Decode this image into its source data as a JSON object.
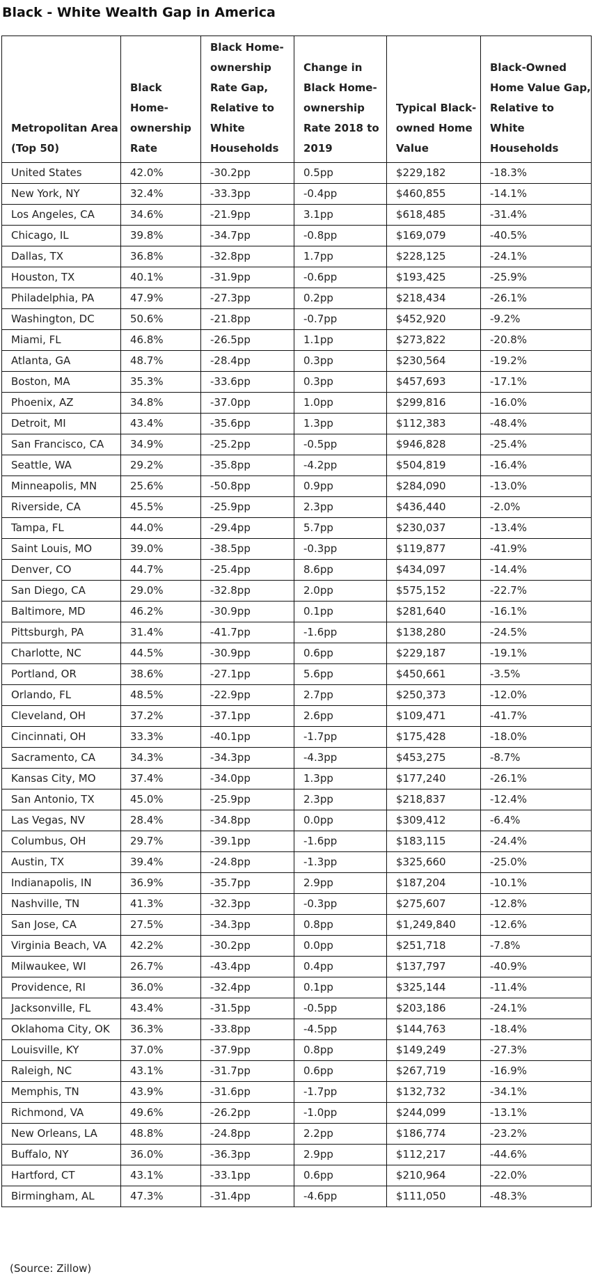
{
  "title": "Black - White Wealth Gap in America",
  "table": {
    "headers": [
      "Metropolitan Area (Top 50)",
      "Black Home-ownership Rate",
      "Black Home-ownership Rate Gap, Relative to White Households",
      "Change in Black Home-ownership Rate 2018 to 2019",
      "Typical Black-owned Home Value",
      "Black-Owned Home Value Gap, Relative to White Households"
    ],
    "rows": [
      [
        "United States",
        "42.0%",
        "-30.2pp",
        "0.5pp",
        "$229,182",
        "-18.3%"
      ],
      [
        "New York, NY",
        "32.4%",
        "-33.3pp",
        "-0.4pp",
        "$460,855",
        "-14.1%"
      ],
      [
        "Los Angeles, CA",
        "34.6%",
        "-21.9pp",
        "3.1pp",
        "$618,485",
        "-31.4%"
      ],
      [
        "Chicago, IL",
        "39.8%",
        "-34.7pp",
        "-0.8pp",
        "$169,079",
        "-40.5%"
      ],
      [
        "Dallas, TX",
        "36.8%",
        "-32.8pp",
        "1.7pp",
        "$228,125",
        "-24.1%"
      ],
      [
        "Houston, TX",
        "40.1%",
        "-31.9pp",
        "-0.6pp",
        "$193,425",
        "-25.9%"
      ],
      [
        "Philadelphia, PA",
        "47.9%",
        "-27.3pp",
        "0.2pp",
        "$218,434",
        "-26.1%"
      ],
      [
        "Washington, DC",
        "50.6%",
        "-21.8pp",
        "-0.7pp",
        "$452,920",
        "-9.2%"
      ],
      [
        "Miami, FL",
        "46.8%",
        "-26.5pp",
        "1.1pp",
        "$273,822",
        "-20.8%"
      ],
      [
        "Atlanta, GA",
        "48.7%",
        "-28.4pp",
        "0.3pp",
        "$230,564",
        "-19.2%"
      ],
      [
        "Boston, MA",
        "35.3%",
        "-33.6pp",
        "0.3pp",
        "$457,693",
        "-17.1%"
      ],
      [
        "Phoenix, AZ",
        "34.8%",
        "-37.0pp",
        "1.0pp",
        "$299,816",
        "-16.0%"
      ],
      [
        "Detroit, MI",
        "43.4%",
        "-35.6pp",
        "1.3pp",
        "$112,383",
        "-48.4%"
      ],
      [
        "San Francisco, CA",
        "34.9%",
        "-25.2pp",
        "-0.5pp",
        "$946,828",
        "-25.4%"
      ],
      [
        "Seattle, WA",
        "29.2%",
        "-35.8pp",
        "-4.2pp",
        "$504,819",
        "-16.4%"
      ],
      [
        "Minneapolis, MN",
        "25.6%",
        "-50.8pp",
        "0.9pp",
        "$284,090",
        "-13.0%"
      ],
      [
        "Riverside, CA",
        "45.5%",
        "-25.9pp",
        "2.3pp",
        "$436,440",
        "-2.0%"
      ],
      [
        "Tampa, FL",
        "44.0%",
        "-29.4pp",
        "5.7pp",
        "$230,037",
        "-13.4%"
      ],
      [
        "Saint Louis, MO",
        "39.0%",
        "-38.5pp",
        "-0.3pp",
        "$119,877",
        "-41.9%"
      ],
      [
        "Denver, CO",
        "44.7%",
        "-25.4pp",
        "8.6pp",
        "$434,097",
        "-14.4%"
      ],
      [
        "San Diego, CA",
        "29.0%",
        "-32.8pp",
        "2.0pp",
        "$575,152",
        "-22.7%"
      ],
      [
        "Baltimore, MD",
        "46.2%",
        "-30.9pp",
        "0.1pp",
        "$281,640",
        "-16.1%"
      ],
      [
        "Pittsburgh, PA",
        "31.4%",
        "-41.7pp",
        "-1.6pp",
        "$138,280",
        "-24.5%"
      ],
      [
        "Charlotte, NC",
        "44.5%",
        "-30.9pp",
        "0.6pp",
        "$229,187",
        "-19.1%"
      ],
      [
        "Portland, OR",
        "38.6%",
        "-27.1pp",
        "5.6pp",
        "$450,661",
        "-3.5%"
      ],
      [
        "Orlando, FL",
        "48.5%",
        "-22.9pp",
        "2.7pp",
        "$250,373",
        "-12.0%"
      ],
      [
        "Cleveland, OH",
        "37.2%",
        "-37.1pp",
        "2.6pp",
        "$109,471",
        "-41.7%"
      ],
      [
        "Cincinnati, OH",
        "33.3%",
        "-40.1pp",
        "-1.7pp",
        "$175,428",
        "-18.0%"
      ],
      [
        "Sacramento, CA",
        "34.3%",
        "-34.3pp",
        "-4.3pp",
        "$453,275",
        "-8.7%"
      ],
      [
        "Kansas City, MO",
        "37.4%",
        "-34.0pp",
        "1.3pp",
        "$177,240",
        "-26.1%"
      ],
      [
        "San Antonio, TX",
        "45.0%",
        "-25.9pp",
        "2.3pp",
        "$218,837",
        "-12.4%"
      ],
      [
        "Las Vegas, NV",
        "28.4%",
        "-34.8pp",
        "0.0pp",
        "$309,412",
        "-6.4%"
      ],
      [
        "Columbus, OH",
        "29.7%",
        "-39.1pp",
        "-1.6pp",
        "$183,115",
        "-24.4%"
      ],
      [
        "Austin, TX",
        "39.4%",
        "-24.8pp",
        "-1.3pp",
        "$325,660",
        "-25.0%"
      ],
      [
        "Indianapolis, IN",
        "36.9%",
        "-35.7pp",
        "2.9pp",
        "$187,204",
        "-10.1%"
      ],
      [
        "Nashville, TN",
        "41.3%",
        "-32.3pp",
        "-0.3pp",
        "$275,607",
        "-12.8%"
      ],
      [
        "San Jose, CA",
        "27.5%",
        "-34.3pp",
        "0.8pp",
        "$1,249,840",
        "-12.6%"
      ],
      [
        "Virginia Beach, VA",
        "42.2%",
        "-30.2pp",
        "0.0pp",
        "$251,718",
        "-7.8%"
      ],
      [
        "Milwaukee, WI",
        "26.7%",
        "-43.4pp",
        "0.4pp",
        "$137,797",
        "-40.9%"
      ],
      [
        "Providence, RI",
        "36.0%",
        "-32.4pp",
        "0.1pp",
        "$325,144",
        "-11.4%"
      ],
      [
        "Jacksonville, FL",
        "43.4%",
        "-31.5pp",
        "-0.5pp",
        "$203,186",
        "-24.1%"
      ],
      [
        "Oklahoma City, OK",
        "36.3%",
        "-33.8pp",
        "-4.5pp",
        "$144,763",
        "-18.4%"
      ],
      [
        "Louisville, KY",
        "37.0%",
        "-37.9pp",
        "0.8pp",
        "$149,249",
        "-27.3%"
      ],
      [
        "Raleigh, NC",
        "43.1%",
        "-31.7pp",
        "0.6pp",
        "$267,719",
        "-16.9%"
      ],
      [
        "Memphis, TN",
        "43.9%",
        "-31.6pp",
        "-1.7pp",
        "$132,732",
        "-34.1%"
      ],
      [
        "Richmond, VA",
        "49.6%",
        "-26.2pp",
        "-1.0pp",
        "$244,099",
        "-13.1%"
      ],
      [
        "New Orleans, LA",
        "48.8%",
        "-24.8pp",
        "2.2pp",
        "$186,774",
        "-23.2%"
      ],
      [
        "Buffalo, NY",
        "36.0%",
        "-36.3pp",
        "2.9pp",
        "$112,217",
        "-44.6%"
      ],
      [
        "Hartford, CT",
        "43.1%",
        "-33.1pp",
        "0.6pp",
        "$210,964",
        "-22.0%"
      ],
      [
        "Birmingham, AL",
        "47.3%",
        "-31.4pp",
        "-4.6pp",
        "$111,050",
        "-48.3%"
      ]
    ]
  },
  "source_note": "(Source: Zillow)"
}
